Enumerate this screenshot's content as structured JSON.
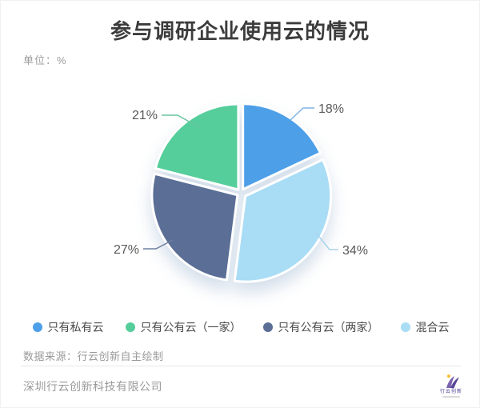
{
  "title": "参与调研企业使用云的情况",
  "unit_label": "单位：%",
  "chart_data": {
    "type": "pie",
    "title": "参与调研企业使用云的情况",
    "unit": "%",
    "legend_position": "bottom",
    "label_format": "percent",
    "draw_order": [
      0,
      3,
      2,
      1
    ],
    "segments": [
      {
        "label": "只有私有云",
        "value": 18,
        "display": "18%",
        "color": "#4D9FE8",
        "explode": 5
      },
      {
        "label": "只有公有云（一家）",
        "value": 21,
        "display": "21%",
        "color": "#55CE9B",
        "explode": 5
      },
      {
        "label": "只有公有云（两家）",
        "value": 27,
        "display": "27%",
        "color": "#5A6E96",
        "explode": 5
      },
      {
        "label": "混合云",
        "value": 34,
        "display": "34%",
        "color": "#A9DCF5",
        "explode": 7
      }
    ]
  },
  "legend": {
    "items": [
      {
        "label": "只有私有云",
        "color": "#4D9FE8"
      },
      {
        "label": "只有公有云（一家）",
        "color": "#55CE9B"
      },
      {
        "label": "只有公有云（两家）",
        "color": "#5A6E96"
      },
      {
        "label": "混合云",
        "color": "#A9DCF5"
      }
    ]
  },
  "source": "数据来源：行云创新自主绘制",
  "footer": {
    "company": "深圳行云创新科技有限公司",
    "logo_text": "行云创新"
  }
}
